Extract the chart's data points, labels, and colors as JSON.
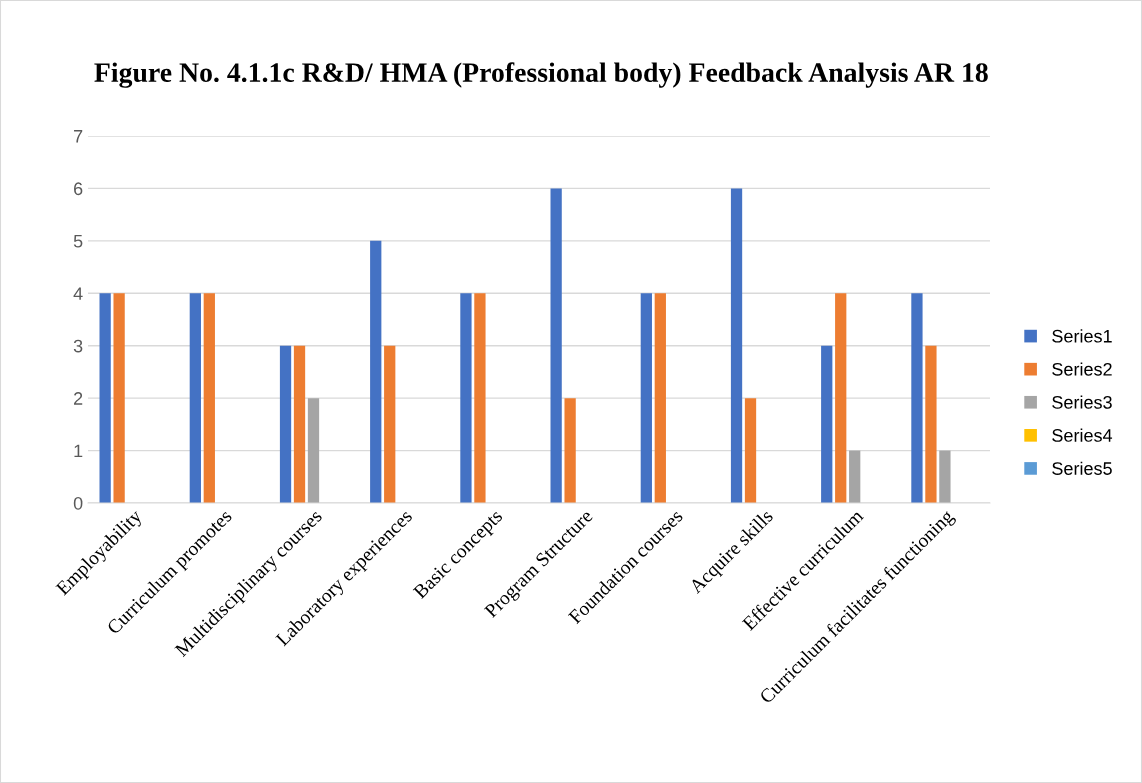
{
  "chart_data": {
    "type": "bar",
    "title": "Figure No. 4.1.1c R&D/ HMA (Professional body) Feedback Analysis AR 18",
    "categories": [
      "Employability",
      "Curriculum promotes",
      "Multidisciplinary courses",
      "Laboratory experiences",
      "Basic concepts",
      "Program Structure",
      "Foundation courses",
      "Acquire skills",
      "Effective curriculum",
      "Curriculum facilitates functioning"
    ],
    "series": [
      {
        "name": "Series1",
        "color": "#4472c4",
        "values": [
          4,
          4,
          3,
          5,
          4,
          6,
          4,
          6,
          3,
          4
        ]
      },
      {
        "name": "Series2",
        "color": "#ed7d31",
        "values": [
          4,
          4,
          3,
          3,
          4,
          2,
          4,
          2,
          4,
          3
        ]
      },
      {
        "name": "Series3",
        "color": "#a5a5a5",
        "values": [
          0,
          0,
          2,
          0,
          0,
          0,
          0,
          0,
          1,
          1
        ]
      },
      {
        "name": "Series4",
        "color": "#ffc000",
        "values": [
          0,
          0,
          0,
          0,
          0,
          0,
          0,
          0,
          0,
          0
        ]
      },
      {
        "name": "Series5",
        "color": "#5b9bd5",
        "values": [
          0,
          0,
          0,
          0,
          0,
          0,
          0,
          0,
          0,
          0
        ]
      }
    ],
    "ylim": [
      0,
      7
    ],
    "yticks": [
      0,
      1,
      2,
      3,
      4,
      5,
      6,
      7
    ],
    "grid": "y",
    "legend": "right"
  }
}
